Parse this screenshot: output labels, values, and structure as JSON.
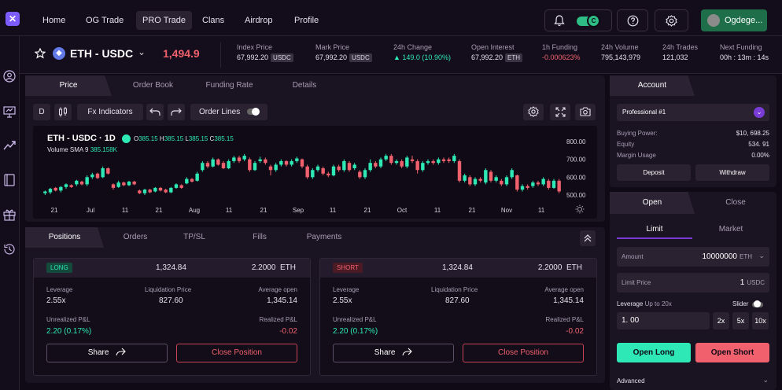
{
  "nav": {
    "links": [
      "Home",
      "OG Trade",
      "PRO Trade",
      "Clans",
      "Airdrop",
      "Profile"
    ],
    "active": "PRO Trade",
    "profile_name": "Ogdege...",
    "toggle_badge": "C"
  },
  "ticker": {
    "pair": "ETH - USDC",
    "price": "1,494.9",
    "stats": [
      {
        "label": "Index Price",
        "value": "67,992.20",
        "tag": "USDC"
      },
      {
        "label": "Mark Price",
        "value": "67,992.20",
        "tag": "USDC"
      },
      {
        "label": "24h Change",
        "value": "▲ 149.0 (10.90%)",
        "tag": ""
      },
      {
        "label": "Open Interest",
        "value": "67,992.20",
        "tag": "ETH"
      },
      {
        "label": "1h Funding",
        "value": "-0.000623%",
        "tag": ""
      },
      {
        "label": "24h Volume",
        "value": "795,143,979",
        "tag": ""
      },
      {
        "label": "24h Trades",
        "value": "121,032",
        "tag": ""
      },
      {
        "label": "Next Funding",
        "value": "00h : 13m : 14s",
        "tag": ""
      }
    ]
  },
  "chart_tabs": [
    "Price",
    "Order Book",
    "Funding Rate",
    "Details"
  ],
  "toolbar": {
    "d": "D",
    "indicators": "Fx Indicators",
    "order_lines": "Order Lines"
  },
  "chart_header": {
    "title": "ETH - USDC · 1D",
    "o": "385.15",
    "h": "385.15",
    "l": "385.15",
    "c": "385.15",
    "vol_label": "Volume SMA 9",
    "vol_value": "385.158K"
  },
  "chart_data": {
    "type": "candlestick",
    "y_ticks": [
      "800.00",
      "700.00",
      "600.00",
      "500.00"
    ],
    "ylim": [
      470,
      830
    ],
    "x_ticks": [
      "21",
      "Jul",
      "11",
      "21",
      "Aug",
      "11",
      "21",
      "Sep",
      "11",
      "21",
      "Oct",
      "11",
      "21",
      "Nov",
      "11"
    ],
    "candles": [
      [
        510,
        520,
        500,
        525,
        "g"
      ],
      [
        515,
        535,
        505,
        540,
        "g"
      ],
      [
        540,
        525,
        520,
        545,
        "r"
      ],
      [
        525,
        545,
        515,
        550,
        "g"
      ],
      [
        545,
        560,
        535,
        565,
        "g"
      ],
      [
        555,
        545,
        540,
        560,
        "r"
      ],
      [
        560,
        580,
        550,
        585,
        "g"
      ],
      [
        575,
        560,
        555,
        580,
        "r"
      ],
      [
        560,
        600,
        550,
        610,
        "g"
      ],
      [
        600,
        615,
        590,
        625,
        "g"
      ],
      [
        620,
        595,
        590,
        625,
        "r"
      ],
      [
        600,
        650,
        595,
        660,
        "g"
      ],
      [
        650,
        620,
        615,
        655,
        "r"
      ],
      [
        560,
        540,
        530,
        565,
        "r"
      ],
      [
        545,
        570,
        540,
        580,
        "g"
      ],
      [
        570,
        555,
        550,
        575,
        "r"
      ],
      [
        555,
        575,
        550,
        580,
        "g"
      ],
      [
        575,
        560,
        555,
        580,
        "r"
      ],
      [
        525,
        510,
        505,
        530,
        "r"
      ],
      [
        510,
        530,
        500,
        535,
        "g"
      ],
      [
        530,
        515,
        510,
        535,
        "r"
      ],
      [
        520,
        540,
        515,
        545,
        "g"
      ],
      [
        540,
        525,
        520,
        545,
        "r"
      ],
      [
        530,
        515,
        510,
        535,
        "r"
      ],
      [
        515,
        540,
        510,
        545,
        "g"
      ],
      [
        540,
        560,
        535,
        565,
        "g"
      ],
      [
        555,
        540,
        535,
        560,
        "r"
      ],
      [
        565,
        590,
        560,
        600,
        "g"
      ],
      [
        590,
        575,
        570,
        595,
        "r"
      ],
      [
        580,
        620,
        575,
        630,
        "g"
      ],
      [
        640,
        680,
        630,
        690,
        "g"
      ],
      [
        680,
        660,
        650,
        690,
        "r"
      ],
      [
        660,
        700,
        655,
        710,
        "g"
      ],
      [
        700,
        670,
        665,
        705,
        "r"
      ],
      [
        680,
        650,
        645,
        690,
        "r"
      ],
      [
        650,
        690,
        645,
        700,
        "g"
      ],
      [
        690,
        710,
        680,
        720,
        "g"
      ],
      [
        710,
        690,
        680,
        720,
        "r"
      ],
      [
        700,
        720,
        690,
        730,
        "g"
      ],
      [
        700,
        640,
        630,
        710,
        "r"
      ],
      [
        640,
        680,
        635,
        690,
        "g"
      ],
      [
        690,
        700,
        680,
        715,
        "g"
      ],
      [
        700,
        680,
        670,
        710,
        "r"
      ],
      [
        660,
        640,
        610,
        670,
        "r"
      ],
      [
        640,
        670,
        630,
        680,
        "g"
      ],
      [
        670,
        690,
        660,
        700,
        "g"
      ],
      [
        690,
        670,
        660,
        695,
        "r"
      ],
      [
        670,
        690,
        660,
        700,
        "g"
      ],
      [
        690,
        705,
        680,
        715,
        "g"
      ],
      [
        700,
        660,
        650,
        705,
        "r"
      ],
      [
        660,
        600,
        590,
        670,
        "r"
      ],
      [
        600,
        640,
        590,
        650,
        "g"
      ],
      [
        640,
        660,
        630,
        670,
        "g"
      ],
      [
        650,
        620,
        610,
        660,
        "r"
      ],
      [
        620,
        610,
        600,
        630,
        "r"
      ],
      [
        610,
        660,
        605,
        670,
        "g"
      ],
      [
        660,
        640,
        630,
        670,
        "r"
      ],
      [
        640,
        690,
        630,
        700,
        "g"
      ],
      [
        680,
        640,
        630,
        690,
        "r"
      ],
      [
        650,
        670,
        640,
        680,
        "g"
      ],
      [
        630,
        600,
        590,
        640,
        "r"
      ],
      [
        600,
        640,
        590,
        650,
        "g"
      ],
      [
        640,
        680,
        630,
        700,
        "g"
      ],
      [
        680,
        660,
        650,
        690,
        "r"
      ],
      [
        660,
        700,
        650,
        710,
        "g"
      ],
      [
        700,
        720,
        690,
        730,
        "g"
      ],
      [
        720,
        680,
        670,
        730,
        "r"
      ],
      [
        680,
        690,
        670,
        700,
        "g"
      ],
      [
        690,
        660,
        650,
        700,
        "r"
      ],
      [
        660,
        710,
        650,
        720,
        "g"
      ],
      [
        700,
        690,
        680,
        720,
        "r"
      ],
      [
        690,
        640,
        620,
        700,
        "r"
      ],
      [
        640,
        680,
        630,
        690,
        "g"
      ],
      [
        680,
        690,
        670,
        700,
        "g"
      ],
      [
        690,
        680,
        670,
        700,
        "r"
      ],
      [
        680,
        700,
        670,
        710,
        "g"
      ],
      [
        700,
        690,
        680,
        710,
        "r"
      ],
      [
        700,
        690,
        680,
        710,
        "r"
      ],
      [
        690,
        720,
        680,
        730,
        "g"
      ],
      [
        690,
        580,
        570,
        700,
        "r"
      ],
      [
        580,
        610,
        570,
        620,
        "g"
      ],
      [
        600,
        560,
        550,
        610,
        "r"
      ],
      [
        560,
        590,
        550,
        600,
        "g"
      ],
      [
        590,
        580,
        570,
        600,
        "r"
      ],
      [
        570,
        640,
        560,
        650,
        "g"
      ],
      [
        630,
        580,
        570,
        640,
        "r"
      ],
      [
        580,
        600,
        570,
        610,
        "g"
      ],
      [
        580,
        560,
        550,
        590,
        "r"
      ],
      [
        560,
        600,
        550,
        610,
        "g"
      ],
      [
        600,
        640,
        590,
        650,
        "g"
      ],
      [
        610,
        530,
        520,
        615,
        "r"
      ],
      [
        530,
        550,
        520,
        560,
        "g"
      ],
      [
        550,
        540,
        530,
        560,
        "r"
      ],
      [
        550,
        570,
        540,
        580,
        "g"
      ],
      [
        570,
        560,
        550,
        580,
        "r"
      ],
      [
        560,
        590,
        550,
        600,
        "g"
      ],
      [
        580,
        540,
        530,
        590,
        "r"
      ],
      [
        540,
        580,
        535,
        590,
        "g"
      ],
      [
        580,
        520,
        510,
        590,
        "r"
      ]
    ]
  },
  "pos_tabs": [
    "Positions",
    "Orders",
    "TP/SL",
    "Fills",
    "Payments"
  ],
  "positions": [
    {
      "side": "LONG",
      "side_class": "long",
      "amount": "1,324.84",
      "size": "2.2000",
      "unit": "ETH",
      "leverage_label": "Leverage",
      "leverage": "2.55x",
      "liq_label": "Liquidation Price",
      "liq": "827.60",
      "avg_label": "Average open",
      "avg": "1,345.14",
      "upnl_label": "Unrealized P&L",
      "upnl": "2.20 (0.17%)",
      "rpnl_label": "Realized P&L",
      "rpnl": "-0.02",
      "share": "Share",
      "close": "Close Position"
    },
    {
      "side": "SHORT",
      "side_class": "short",
      "amount": "1,324.84",
      "size": "2.2000",
      "unit": "ETH",
      "leverage_label": "Leverage",
      "leverage": "2.55x",
      "liq_label": "Liquidation Price",
      "liq": "827.60",
      "avg_label": "Average open",
      "avg": "1,345.14",
      "upnl_label": "Unrealized P&L",
      "upnl": "2.20 (0.17%)",
      "rpnl_label": "Realized P&L",
      "rpnl": "-0.02",
      "share": "Share",
      "close": "Close Position"
    }
  ],
  "account": {
    "tab": "Account",
    "selected": "Professional #1",
    "rows": [
      {
        "label": "Buying Power:",
        "value": "$10, 698.25"
      },
      {
        "label": "Equity",
        "value": "534. 91"
      },
      {
        "label": "Margin Usage",
        "value": "0.00%"
      }
    ],
    "deposit": "Deposit",
    "withdraw": "Withdraw"
  },
  "order": {
    "open_tab": "Open",
    "close_tab": "Close",
    "limit_tab": "Limit",
    "market_tab": "Market",
    "amount_label": "Amount",
    "amount_value": "10000000",
    "amount_unit": "ETH",
    "limit_label": "Limit Price",
    "limit_value": "1",
    "limit_unit": "USDC",
    "leverage_label": "Leverage",
    "leverage_hint": "Up to 20x",
    "slider_label": "Slider",
    "leverage_value": "1. 00",
    "lev_buttons": [
      "2x",
      "5x",
      "10x"
    ],
    "open_long": "Open Long",
    "open_short": "Open Short",
    "advanced": "Advanced"
  }
}
